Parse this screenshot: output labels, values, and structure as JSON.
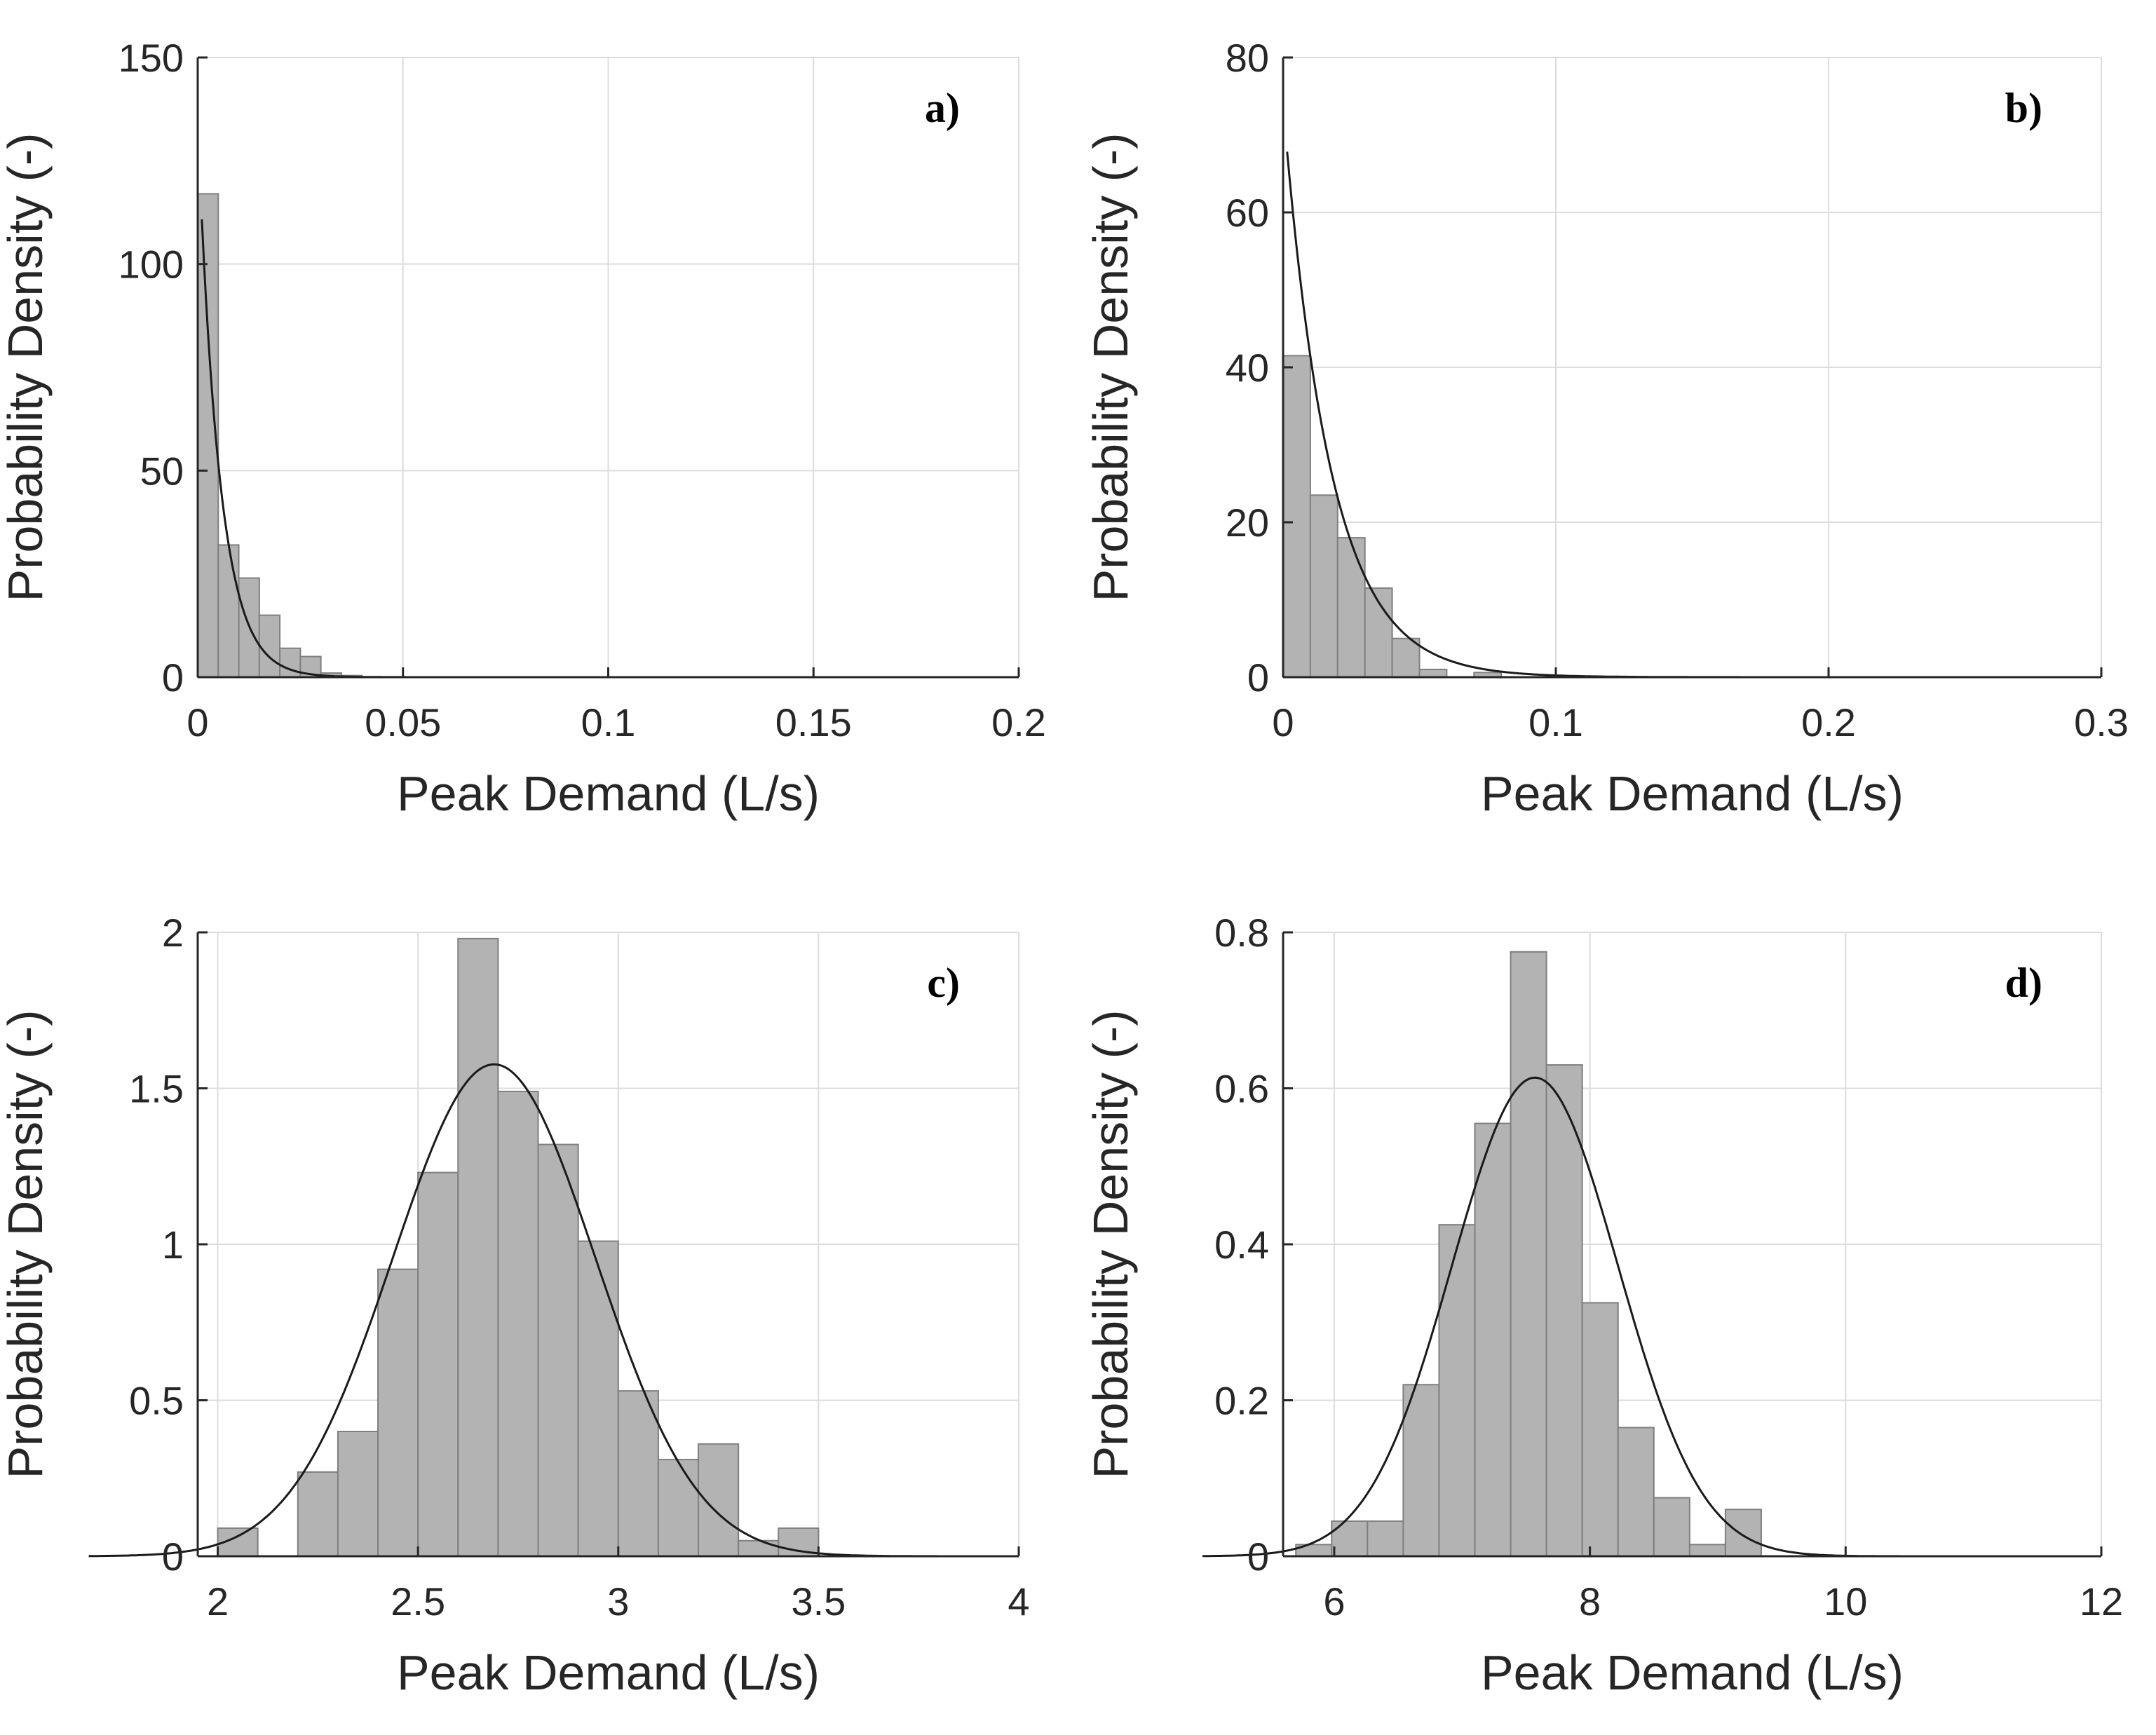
{
  "colors": {
    "bar_fill": "#b3b3b3",
    "bar_edge": "#7f7f7f",
    "grid": "#dcdcdc",
    "axis": "#262626",
    "curve": "#1a1a1a"
  },
  "chart_data": [
    {
      "type": "bar",
      "panel": "a)",
      "title": "",
      "xlabel": "Peak Demand (L/s)",
      "ylabel": "Probability Density (-)",
      "xlim": [
        0,
        0.2
      ],
      "ylim": [
        0,
        150
      ],
      "xticks": [
        0,
        0.05,
        0.1,
        0.15,
        0.2
      ],
      "xtick_labels": [
        "0",
        "0.05",
        "0.1",
        "0.15",
        "0.2"
      ],
      "yticks": [
        0,
        50,
        100,
        150
      ],
      "ytick_labels": [
        "0",
        "50",
        "100",
        "150"
      ],
      "grid": true,
      "bins": {
        "start": 0.0,
        "width": 0.005,
        "values": [
          117,
          32,
          24,
          15,
          7,
          5,
          1,
          0.4
        ]
      },
      "fit": {
        "type": "exponential",
        "peak": 134,
        "rate": 190
      }
    },
    {
      "type": "bar",
      "panel": "b)",
      "title": "",
      "xlabel": "Peak Demand (L/s)",
      "ylabel": "Probability Density (-)",
      "xlim": [
        0,
        0.3
      ],
      "ylim": [
        0,
        80
      ],
      "xticks": [
        0,
        0.1,
        0.2,
        0.3
      ],
      "xtick_labels": [
        "0",
        "0.1",
        "0.2",
        "0.3"
      ],
      "yticks": [
        0,
        20,
        40,
        60,
        80
      ],
      "ytick_labels": [
        "0",
        "20",
        "40",
        "60",
        "80"
      ],
      "grid": true,
      "bins": {
        "start": 0.0,
        "width": 0.01,
        "values": [
          41.5,
          23.5,
          18,
          11.5,
          5,
          1,
          0,
          0.6
        ]
      },
      "fit": {
        "type": "exponential",
        "peak": 74,
        "rate": 58
      }
    },
    {
      "type": "bar",
      "panel": "c)",
      "title": "",
      "xlabel": "Peak Demand (L/s)",
      "ylabel": "Probability Density (-)",
      "xlim": [
        1.95,
        4
      ],
      "ylim": [
        0,
        2
      ],
      "xticks": [
        2,
        2.5,
        3,
        3.5,
        4
      ],
      "xtick_labels": [
        "2",
        "2.5",
        "3",
        "3.5",
        "4"
      ],
      "yticks": [
        0,
        0.5,
        1,
        1.5,
        2
      ],
      "ytick_labels": [
        "0",
        "0.5",
        "1",
        "1.5",
        "2"
      ],
      "grid": true,
      "bins": {
        "start": 2.0,
        "width": 0.1,
        "values": [
          0.09,
          0,
          0.27,
          0.4,
          0.92,
          1.23,
          1.98,
          1.49,
          1.32,
          1.01,
          0.53,
          0.31,
          0.36,
          0.05,
          0.09
        ]
      },
      "fit": {
        "type": "normal",
        "mean": 2.69,
        "sd": 0.253,
        "x_end": 3.8
      }
    },
    {
      "type": "bar",
      "panel": "d)",
      "title": "",
      "xlabel": "Peak Demand (L/s)",
      "ylabel": "Probability Density (-)",
      "xlim": [
        5.6,
        12
      ],
      "ylim": [
        0,
        0.8
      ],
      "xticks": [
        6,
        8,
        10,
        12
      ],
      "xtick_labels": [
        "6",
        "8",
        "10",
        "12"
      ],
      "yticks": [
        0,
        0.2,
        0.4,
        0.6,
        0.8
      ],
      "ytick_labels": [
        "0",
        "0.2",
        "0.4",
        "0.6",
        "0.8"
      ],
      "grid": true,
      "bins": {
        "start": 5.7,
        "width": 0.28,
        "values": [
          0.015,
          0.045,
          0.045,
          0.22,
          0.425,
          0.555,
          0.775,
          0.63,
          0.325,
          0.165,
          0.075,
          0.015,
          0.06
        ]
      },
      "fit": {
        "type": "normal",
        "mean": 7.57,
        "sd": 0.65,
        "x_end": 12
      }
    }
  ]
}
